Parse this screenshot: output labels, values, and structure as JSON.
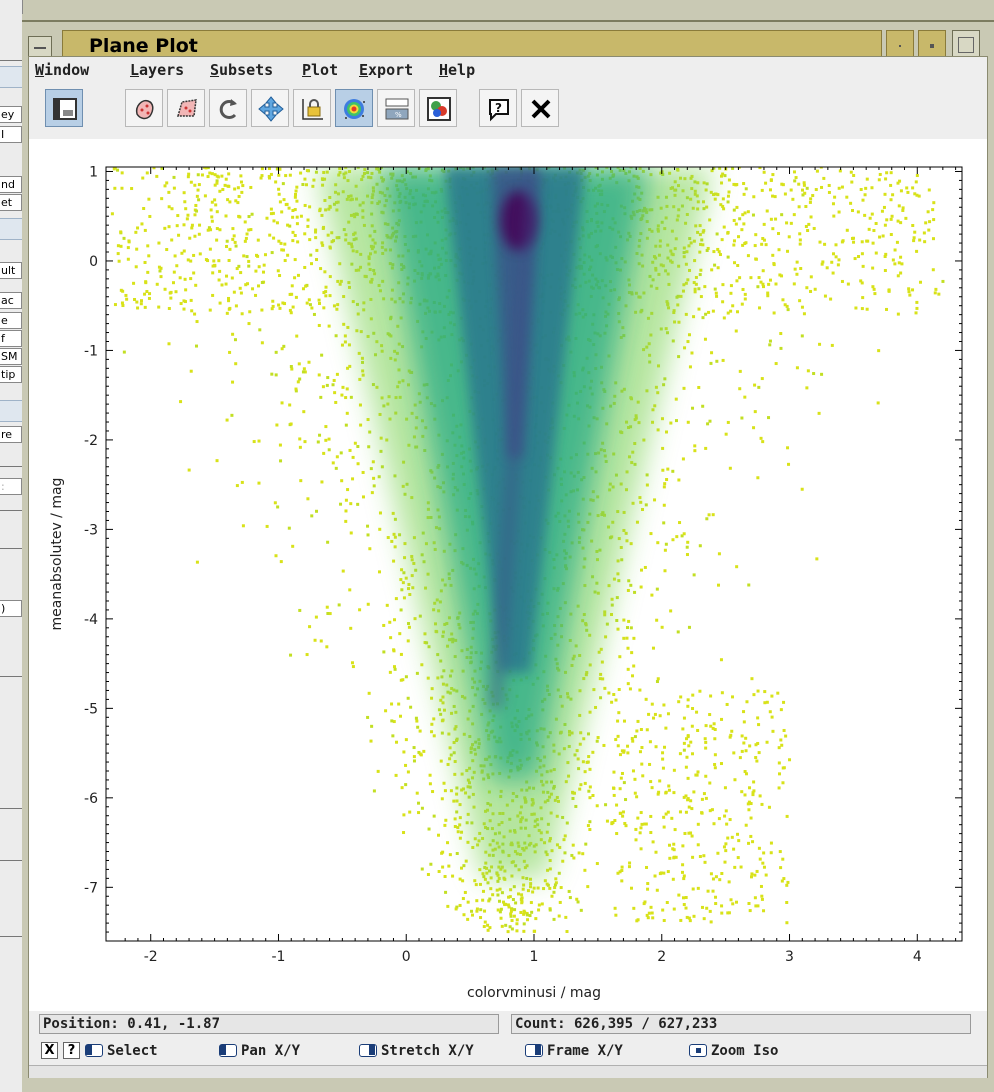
{
  "background_window": {
    "fragments": [
      "ey",
      "I",
      "nd",
      "et",
      "ult",
      "ac",
      "e",
      "f",
      "SM",
      "tip",
      "re",
      ":",
      ")"
    ]
  },
  "window": {
    "title": "Plane Plot"
  },
  "menubar": [
    "Window",
    "Layers",
    "Subsets",
    "Plot",
    "Export",
    "Help"
  ],
  "toolbar": [
    "window-style-icon",
    "lasso-subset-icon",
    "draw-subset-icon",
    "replot-icon",
    "pan-zoom-icon",
    "axis-lock-icon",
    "density-map-icon",
    "sketch-icon",
    "layer-colors-icon",
    "help-icon",
    "close-icon"
  ],
  "chart_data": {
    "type": "scatter",
    "xlabel": "colorvminusi / mag",
    "ylabel": "meanabsolutev / mag",
    "xlim": [
      -2.35,
      4.35
    ],
    "ylim": [
      -7.6,
      1.05
    ],
    "xticks": [
      "-2",
      "-1",
      "0",
      "1",
      "2",
      "3",
      "4"
    ],
    "yticks": [
      "1",
      "0",
      "-1",
      "-2",
      "-3",
      "-4",
      "-5",
      "-6",
      "-7"
    ],
    "colormap": [
      "#d8e219",
      "#7ad151",
      "#22a884",
      "#2a788e",
      "#414487",
      "#440154"
    ],
    "density_peak": {
      "x": 0.88,
      "y": 0.45
    },
    "main_sequence": {
      "x": [
        1.0,
        0.95,
        0.9,
        0.85,
        0.8,
        0.75,
        0.7
      ],
      "y": [
        1.0,
        0.0,
        -1.0,
        -2.0,
        -3.0,
        -4.0,
        -5.0
      ]
    },
    "series": [
      {
        "values": 626395
      }
    ]
  },
  "status": {
    "position": "Position: 0.41, -1.87",
    "count": "Count: 626,395 / 627,233"
  },
  "hints": {
    "close_mark": "X",
    "help_mark": "?",
    "select": "Select",
    "pan": "Pan X/Y",
    "stretch": "Stretch X/Y",
    "frame": "Frame X/Y",
    "zoom": "Zoom Iso"
  }
}
